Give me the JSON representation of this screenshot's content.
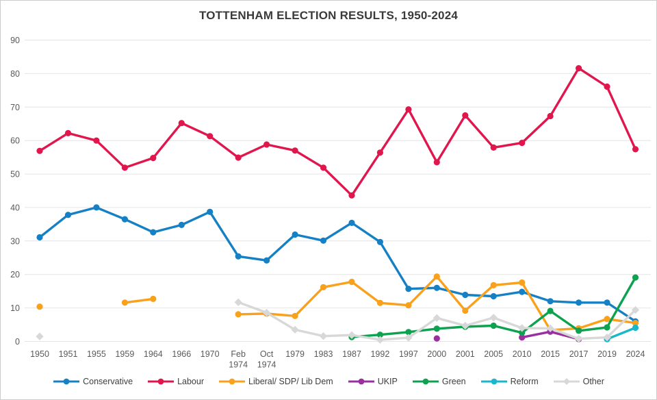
{
  "chart_data": {
    "type": "line",
    "title": "TOTTENHAM ELECTION RESULTS, 1950-2024",
    "xlabel": "",
    "ylabel": "",
    "ylim": [
      0,
      90
    ],
    "yticks": [
      0,
      10,
      20,
      30,
      40,
      50,
      60,
      70,
      80,
      90
    ],
    "grid": true,
    "legend_position": "bottom",
    "categories": [
      "1950",
      "1951",
      "1955",
      "1959",
      "1964",
      "1966",
      "1970",
      "Feb 1974",
      "Oct 1974",
      "1979",
      "1983",
      "1987",
      "1992",
      "1997",
      "2000",
      "2001",
      "2005",
      "2010",
      "2015",
      "2017",
      "2019",
      "2024"
    ],
    "series": [
      {
        "name": "Conservative",
        "color": "#1581c4",
        "marker": "circle",
        "values": [
          31.1,
          37.8,
          40.0,
          36.5,
          32.6,
          34.8,
          38.7,
          25.4,
          24.2,
          31.9,
          30.1,
          35.4,
          29.7,
          15.7,
          16.0,
          13.9,
          13.5,
          14.8,
          12.0,
          11.6,
          11.6,
          6.0
        ]
      },
      {
        "name": "Labour",
        "color": "#e0164d",
        "marker": "circle",
        "values": [
          56.9,
          62.2,
          60.0,
          51.9,
          54.8,
          65.2,
          61.3,
          54.9,
          58.8,
          57.0,
          51.9,
          43.6,
          56.4,
          69.3,
          53.5,
          67.5,
          57.9,
          59.3,
          67.3,
          81.6,
          76.1,
          57.4
        ]
      },
      {
        "name": "Liberal/ SDP/ Lib Dem",
        "color": "#f9a11b",
        "marker": "circle",
        "values": [
          10.4,
          null,
          null,
          11.6,
          12.7,
          null,
          null,
          8.1,
          8.3,
          7.6,
          16.2,
          17.8,
          11.5,
          10.8,
          19.4,
          9.2,
          16.8,
          17.6,
          3.4,
          3.9,
          6.7,
          5.5
        ]
      },
      {
        "name": "UKIP",
        "color": "#9a2fa0",
        "marker": "circle",
        "values": [
          null,
          null,
          null,
          null,
          null,
          null,
          null,
          null,
          null,
          null,
          null,
          null,
          null,
          null,
          0.9,
          null,
          null,
          1.2,
          2.9,
          0.7,
          null,
          null
        ]
      },
      {
        "name": "Green",
        "color": "#0ca24f",
        "marker": "circle",
        "values": [
          null,
          null,
          null,
          null,
          null,
          null,
          null,
          null,
          null,
          null,
          null,
          1.3,
          2.0,
          2.8,
          3.8,
          4.4,
          4.7,
          2.6,
          9.1,
          3.2,
          4.2,
          19.1
        ]
      },
      {
        "name": "Reform",
        "color": "#18b7c9",
        "marker": "circle",
        "values": [
          null,
          null,
          null,
          null,
          null,
          null,
          null,
          null,
          null,
          null,
          null,
          null,
          null,
          null,
          null,
          null,
          null,
          null,
          null,
          null,
          0.7,
          4.1
        ]
      },
      {
        "name": "Other",
        "color": "#d8d8d8",
        "marker": "diamond",
        "values": [
          1.5,
          null,
          null,
          null,
          null,
          null,
          null,
          11.7,
          8.6,
          3.5,
          1.6,
          1.9,
          0.5,
          1.1,
          7.0,
          4.7,
          7.1,
          4.0,
          3.9,
          0.8,
          1.2,
          9.4
        ]
      }
    ]
  }
}
